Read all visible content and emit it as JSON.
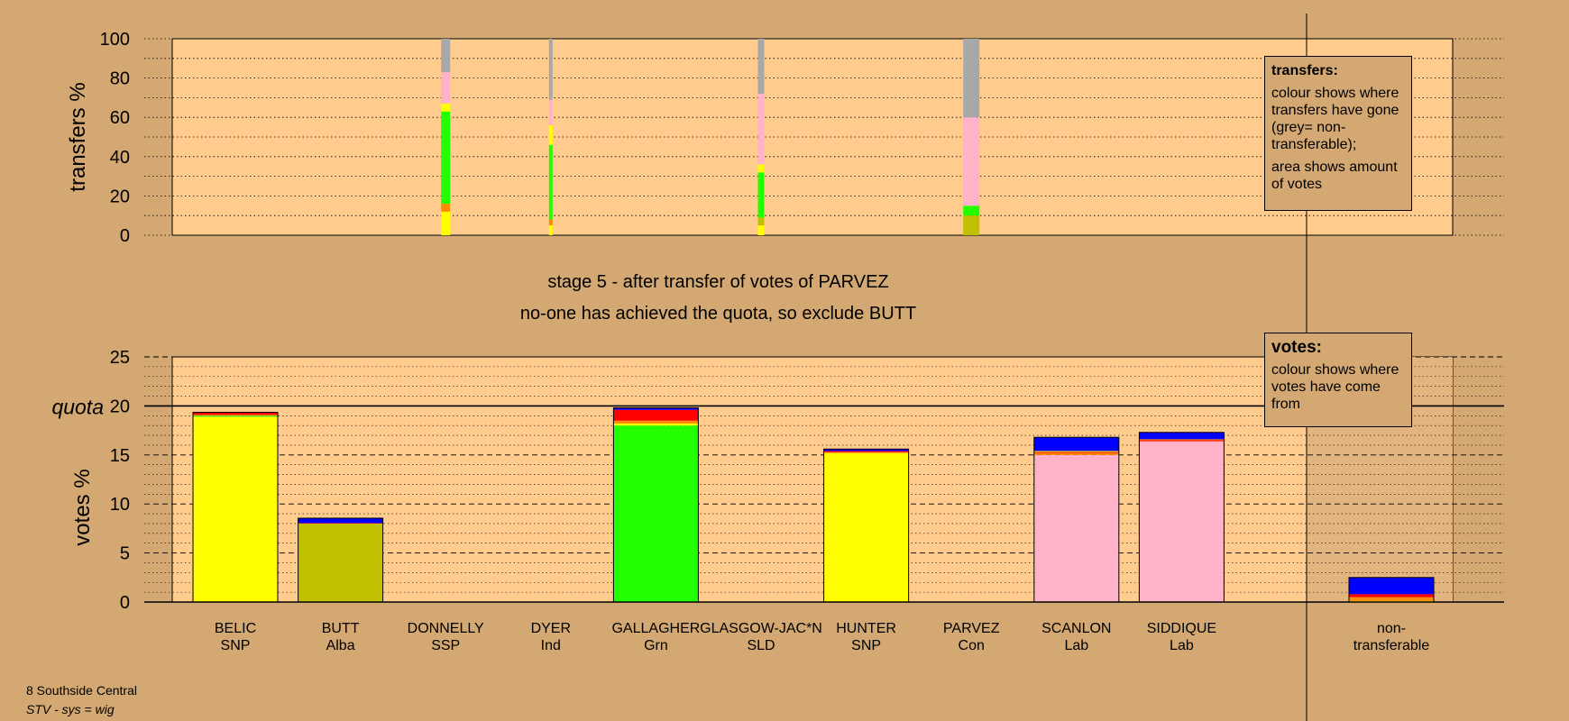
{
  "colors": {
    "background": "#d4a872",
    "plot_area": "#ffcc8e",
    "SNP": "#ffff00",
    "Alba": "#c0c000",
    "SSP": "#ff0000",
    "Ind": "#ff8c00",
    "Grn": "#22ff00",
    "SLD": "#ff8c00",
    "Con": "#0000ff",
    "Lab": "#ffb2c8",
    "non-transferable": "#a8a8a8"
  },
  "header": {
    "stage_line": "stage 5 - after transfer of votes of PARVEZ",
    "status_line": "no-one has achieved the quota, so exclude BUTT"
  },
  "footer": {
    "ward": "8 Southside Central",
    "system": "STV - sys = wig"
  },
  "legend_transfers": {
    "title": "transfers:",
    "line1": "colour shows where transfers have gone (grey= non-transferable);",
    "line2": "area shows amount of votes"
  },
  "legend_votes": {
    "title": "votes:",
    "line1": "colour shows where votes have come from"
  },
  "chart_data": [
    {
      "type": "bar",
      "name": "transfers",
      "ylabel": "transfers %",
      "ylim": [
        0,
        100
      ],
      "yticks": [
        0,
        20,
        40,
        60,
        80,
        100
      ],
      "categories": [
        "BELIC",
        "BUTT",
        "DONNELLY",
        "DYER",
        "GALLAGHER",
        "GLASGOW-JAC*N",
        "HUNTER",
        "PARVEZ",
        "SCANLON",
        "SIDDIQUE"
      ],
      "stacked_transfer_columns": [
        {
          "category": "DONNELLY",
          "segments": [
            {
              "to": "BELIC",
              "color": "#ffff00",
              "value": 12
            },
            {
              "to": "DYER",
              "color": "#ff8c00",
              "value": 4
            },
            {
              "to": "GALLAGHER",
              "color": "#22ff00",
              "value": 47
            },
            {
              "to": "HUNTER",
              "color": "#ffff00",
              "value": 4
            },
            {
              "to": "SCANLON",
              "color": "#ffb2c8",
              "value": 9
            },
            {
              "to": "SIDDIQUE",
              "color": "#ffb2c8",
              "value": 7
            },
            {
              "to": "non-transferable",
              "color": "#a8a8a8",
              "value": 17
            }
          ]
        },
        {
          "category": "DYER",
          "segments": [
            {
              "to": "BELIC",
              "color": "#ffff00",
              "value": 5
            },
            {
              "to": "GLASGOW-JAC*N",
              "color": "#ff8c00",
              "value": 3
            },
            {
              "to": "GALLAGHER",
              "color": "#22ff00",
              "value": 38
            },
            {
              "to": "HUNTER",
              "color": "#ffff00",
              "value": 10
            },
            {
              "to": "SCANLON",
              "color": "#ffb2c8",
              "value": 3
            },
            {
              "to": "SIDDIQUE",
              "color": "#ffb2c8",
              "value": 10
            },
            {
              "to": "non-transferable",
              "color": "#a8a8a8",
              "value": 31
            }
          ]
        },
        {
          "category": "GLASGOW-JAC*N",
          "segments": [
            {
              "to": "BELIC",
              "color": "#ffff00",
              "value": 5
            },
            {
              "to": "BUTT",
              "color": "#c0c000",
              "value": 4
            },
            {
              "to": "GALLAGHER",
              "color": "#22ff00",
              "value": 23
            },
            {
              "to": "HUNTER",
              "color": "#ffff00",
              "value": 4
            },
            {
              "to": "SCANLON",
              "color": "#ffb2c8",
              "value": 19
            },
            {
              "to": "SIDDIQUE",
              "color": "#ffb2c8",
              "value": 17
            },
            {
              "to": "non-transferable",
              "color": "#a8a8a8",
              "value": 28
            }
          ]
        },
        {
          "category": "PARVEZ",
          "segments": [
            {
              "to": "BUTT",
              "color": "#c0c000",
              "value": 3
            },
            {
              "to": "BELIC",
              "color": "#c0c000",
              "value": 7
            },
            {
              "to": "GALLAGHER",
              "color": "#22ff00",
              "value": 5
            },
            {
              "to": "SCANLON",
              "color": "#ffb2c8",
              "value": 22
            },
            {
              "to": "SIDDIQUE",
              "color": "#ffb2c8",
              "value": 23
            },
            {
              "to": "non-transferable",
              "color": "#a8a8a8",
              "value": 40
            }
          ]
        }
      ]
    },
    {
      "type": "bar",
      "name": "votes",
      "ylabel": "votes %",
      "quota_label": "quota",
      "quota": 20,
      "ylim": [
        0,
        25
      ],
      "yticks": [
        0,
        5,
        10,
        15,
        20,
        25
      ],
      "candidates": [
        {
          "name": "BELIC",
          "party": "SNP",
          "segments": [
            {
              "from": "BELIC",
              "color": "#ffff00",
              "value": 18.9
            },
            {
              "from": "GALLAGHER",
              "color": "#22ff00",
              "value": 0.1
            },
            {
              "from": "DYER",
              "color": "#ff8c00",
              "value": 0.1
            },
            {
              "from": "DONNELLY",
              "color": "#ff0000",
              "value": 0.2
            },
            {
              "from": "PARVEZ",
              "color": "#0000ff",
              "value": 0.05
            }
          ]
        },
        {
          "name": "BUTT",
          "party": "Alba",
          "segments": [
            {
              "from": "BUTT",
              "color": "#c0c000",
              "value": 8.0
            },
            {
              "from": "DONNELLY",
              "color": "#ff0000",
              "value": 0.05
            },
            {
              "from": "PARVEZ",
              "color": "#0000ff",
              "value": 0.5
            }
          ]
        },
        {
          "name": "DONNELLY",
          "party": "SSP",
          "segments": []
        },
        {
          "name": "DYER",
          "party": "Ind",
          "segments": []
        },
        {
          "name": "GALLAGHER",
          "party": "Grn",
          "segments": [
            {
              "from": "GALLAGHER",
              "color": "#22ff00",
              "value": 18.0
            },
            {
              "from": "BELIC",
              "color": "#ffff00",
              "value": 0.2
            },
            {
              "from": "GLASGOW-JAC*N",
              "color": "#ff8c00",
              "value": 0.2
            },
            {
              "from": "DYER",
              "color": "#ff8c00",
              "value": 0.1
            },
            {
              "from": "DONNELLY",
              "color": "#ff0000",
              "value": 1.1
            },
            {
              "from": "PARVEZ",
              "color": "#0000ff",
              "value": 0.2
            }
          ]
        },
        {
          "name": "GLASGOW-JAC*N",
          "party": "SLD",
          "segments": []
        },
        {
          "name": "HUNTER",
          "party": "SNP",
          "segments": [
            {
              "from": "HUNTER",
              "color": "#ffff00",
              "value": 15.2
            },
            {
              "from": "DYER",
              "color": "#ff8c00",
              "value": 0.1
            },
            {
              "from": "DONNELLY",
              "color": "#ff0000",
              "value": 0.1
            },
            {
              "from": "PARVEZ",
              "color": "#0000ff",
              "value": 0.2
            }
          ]
        },
        {
          "name": "PARVEZ",
          "party": "Con",
          "segments": []
        },
        {
          "name": "SCANLON",
          "party": "Lab",
          "segments": [
            {
              "from": "SCANLON",
              "color": "#ffb2c8",
              "value": 15.0
            },
            {
              "from": "GLASGOW-JAC*N",
              "color": "#ff8c00",
              "value": 0.2
            },
            {
              "from": "DONNELLY",
              "color": "#ff0000",
              "value": 0.1
            },
            {
              "from": "GALLAGHER",
              "color": "#ffff00",
              "value": 0.1
            },
            {
              "from": "PARVEZ",
              "color": "#0000ff",
              "value": 1.4
            }
          ]
        },
        {
          "name": "SIDDIQUE",
          "party": "Lab",
          "segments": [
            {
              "from": "SIDDIQUE",
              "color": "#ffb2c8",
              "value": 16.4
            },
            {
              "from": "DONNELLY",
              "color": "#ff0000",
              "value": 0.1
            },
            {
              "from": "GLASGOW-JAC*N",
              "color": "#ff8c00",
              "value": 0.1
            },
            {
              "from": "PARVEZ",
              "color": "#0000ff",
              "value": 0.7
            }
          ]
        }
      ],
      "non_transferable": {
        "label1": "non-",
        "label2": "transferable",
        "segments": [
          {
            "from": "BELIC",
            "color": "#ffff00",
            "value": 0.1
          },
          {
            "from": "DYER",
            "color": "#ff8c00",
            "value": 0.2
          },
          {
            "from": "GLASGOW-JAC*N",
            "color": "#ff8c00",
            "value": 0.2
          },
          {
            "from": "DONNELLY",
            "color": "#ff0000",
            "value": 0.3
          },
          {
            "from": "PARVEZ",
            "color": "#0000ff",
            "value": 1.7
          }
        ]
      }
    }
  ]
}
